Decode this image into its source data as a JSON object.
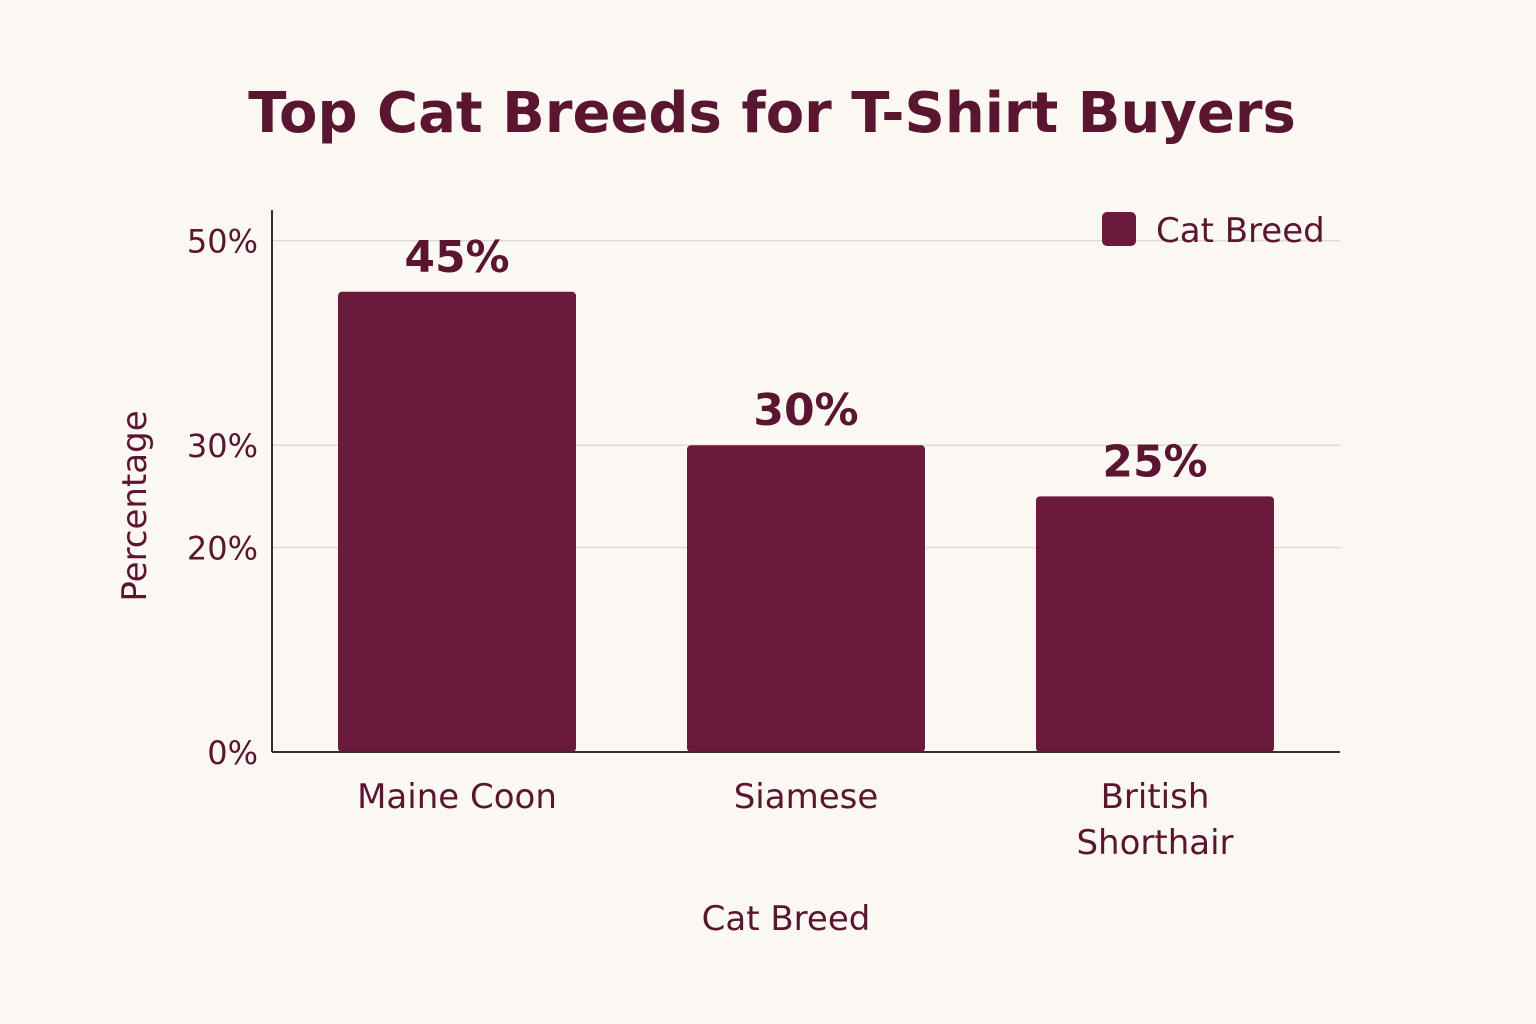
{
  "chart_data": {
    "type": "bar",
    "title": "Top Cat Breeds for T-Shirt Buyers",
    "xlabel": "Cat Breed",
    "ylabel": "Percentage",
    "categories": [
      "Maine Coon",
      "Siamese",
      "British Shorthair"
    ],
    "category_lines": [
      [
        "Maine Coon"
      ],
      [
        "Siamese"
      ],
      [
        "British",
        "Shorthair"
      ]
    ],
    "series": [
      {
        "name": "Cat Breed",
        "values": [
          45,
          30,
          25
        ],
        "labels": [
          "45%",
          "30%",
          "25%"
        ]
      }
    ],
    "yticks": [
      0,
      20,
      30,
      50
    ],
    "ytick_labels": [
      "0%",
      "20%",
      "30%",
      "50%"
    ],
    "ylim": [
      0,
      53
    ],
    "grid": true,
    "legend_position": "top-right",
    "colors": {
      "bar": "#6b1a3c",
      "text": "#5a1530",
      "grid": "#dedad3",
      "axis": "#3a2a2e",
      "background": "#fbf8f3"
    }
  }
}
